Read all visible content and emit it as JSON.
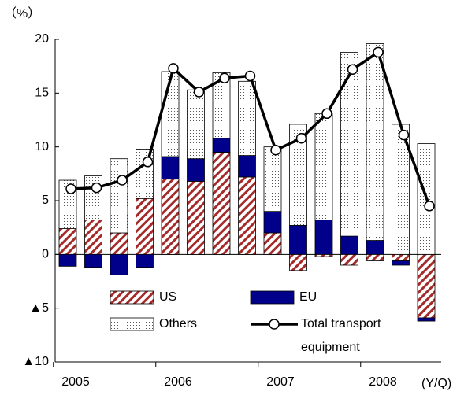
{
  "chart_data": {
    "type": "bar",
    "stacked": true,
    "y_label": "（%）",
    "x_label": "(Y/Q)",
    "categories": [
      "2005",
      null,
      null,
      null,
      "2006",
      null,
      null,
      null,
      "2007",
      null,
      null,
      null,
      "2008",
      null,
      null
    ],
    "series": [
      {
        "name": "US",
        "type": "bar",
        "color": "#a52a2a",
        "pattern": "hatch",
        "values": [
          2.4,
          3.2,
          2.0,
          5.2,
          7.0,
          6.8,
          9.5,
          7.2,
          2.0,
          -1.5,
          -0.2,
          -1.0,
          -0.6,
          -0.6,
          -5.9
        ]
      },
      {
        "name": "EU",
        "type": "bar",
        "color": "#00008b",
        "pattern": "solid",
        "values": [
          -1.1,
          -1.2,
          -1.9,
          -1.2,
          2.1,
          2.1,
          1.3,
          2.0,
          2.0,
          2.7,
          3.2,
          1.7,
          1.3,
          -0.4,
          -0.3
        ]
      },
      {
        "name": "Others",
        "type": "bar",
        "color": "#000000",
        "pattern": "dots",
        "values": [
          4.5,
          4.1,
          6.9,
          4.6,
          7.9,
          6.4,
          6.1,
          6.9,
          6.0,
          9.4,
          9.9,
          17.1,
          18.3,
          12.1,
          10.3
        ]
      },
      {
        "name": "Total transport equipment",
        "type": "line",
        "color": "#000000",
        "values": [
          6.1,
          6.2,
          6.9,
          8.6,
          17.3,
          15.1,
          16.4,
          16.6,
          9.7,
          10.8,
          13.1,
          17.2,
          18.8,
          11.1,
          4.5
        ]
      }
    ],
    "ylim": [
      -10,
      20
    ],
    "yticks": [
      20,
      15,
      10,
      5,
      0,
      {
        "value": -5,
        "label": "▲5"
      },
      {
        "value": -10,
        "label": "▲10"
      }
    ],
    "grid": false
  }
}
